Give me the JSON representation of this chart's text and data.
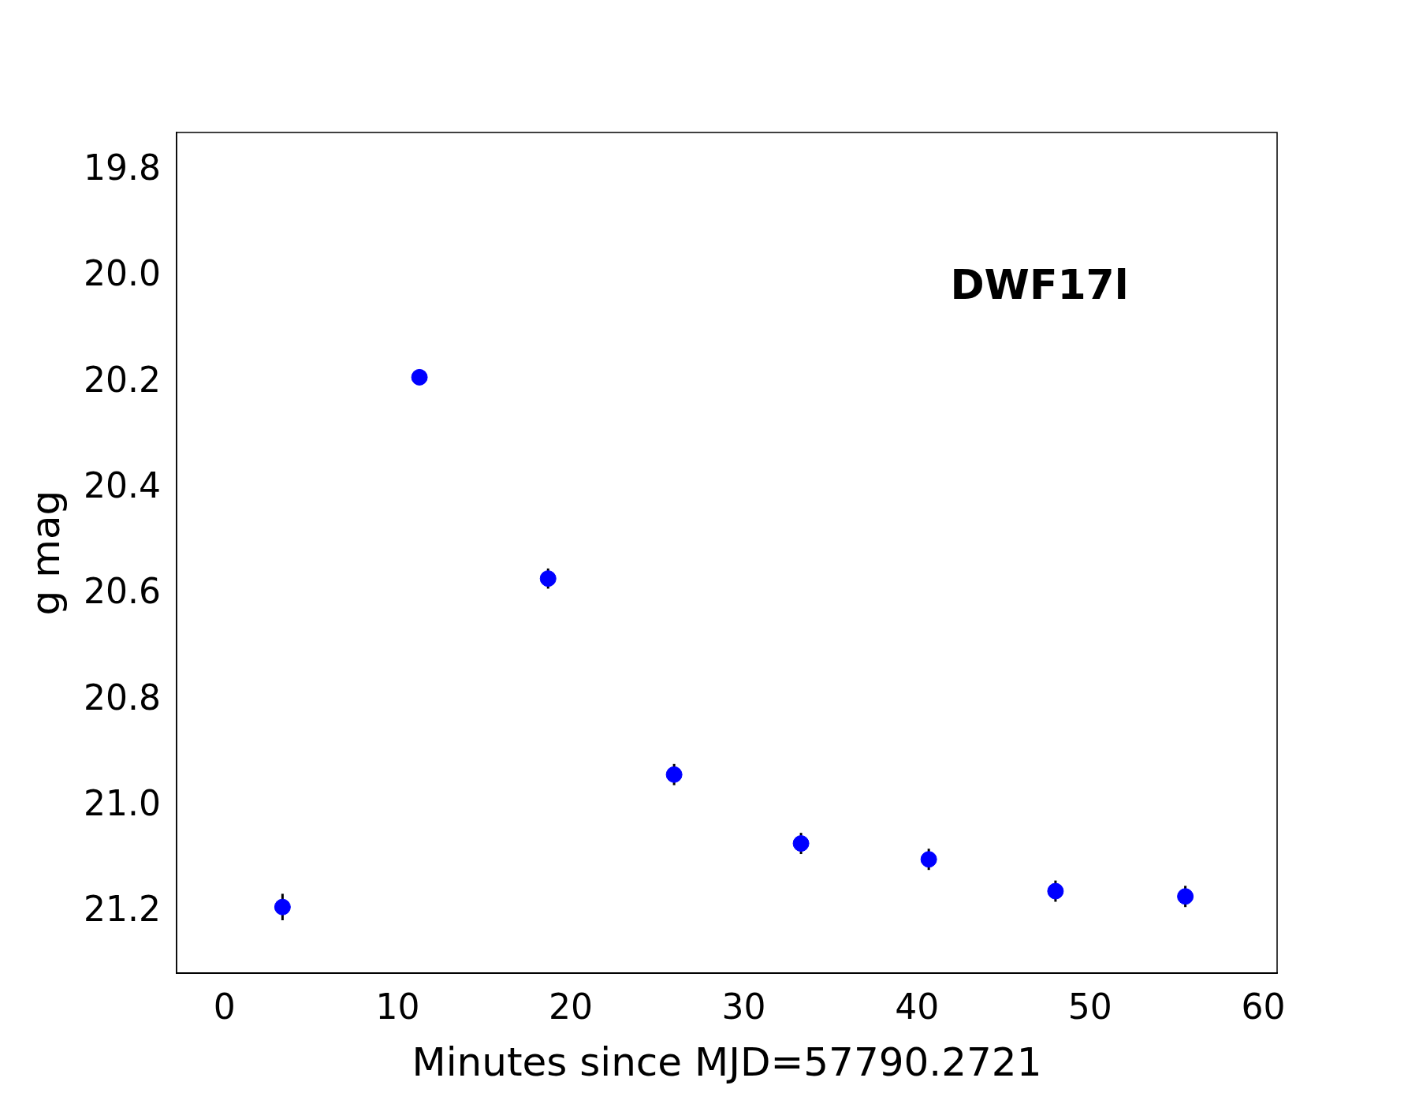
{
  "chart_data": {
    "type": "scatter",
    "xlabel": "Minutes since MJD=57790.2721",
    "ylabel": "g mag",
    "annotations": [
      "DWF17l"
    ],
    "x": [
      3.35,
      11.26,
      18.69,
      25.97,
      33.3,
      40.68,
      48.0,
      55.5
    ],
    "series": [
      {
        "color": "#0000ff",
        "values": [
          21.19,
          20.19,
          20.57,
          20.94,
          21.07,
          21.1,
          21.16,
          21.17
        ],
        "errors": [
          0.025,
          null,
          0.019,
          0.02,
          0.02,
          0.02,
          0.02,
          0.02
        ]
      }
    ],
    "xlim": [
      -2.77,
      60.8
    ],
    "xticks": [
      0,
      10,
      20,
      30,
      40,
      50,
      60
    ],
    "ylim": [
      21.315,
      19.728
    ],
    "yticks": [
      {
        "value": 19.8,
        "label": "19.8"
      },
      {
        "value": 20.0,
        "label": "20.0"
      },
      {
        "value": 20.2,
        "label": "20.2"
      },
      {
        "value": 20.4,
        "label": "20.4"
      },
      {
        "value": 20.6,
        "label": "20.6"
      },
      {
        "value": 20.8,
        "label": "20.8"
      },
      {
        "value": 21.0,
        "label": "21.0"
      },
      {
        "value": 21.2,
        "label": "21.2"
      }
    ],
    "grid": false,
    "legend": false,
    "marker": "circle"
  }
}
